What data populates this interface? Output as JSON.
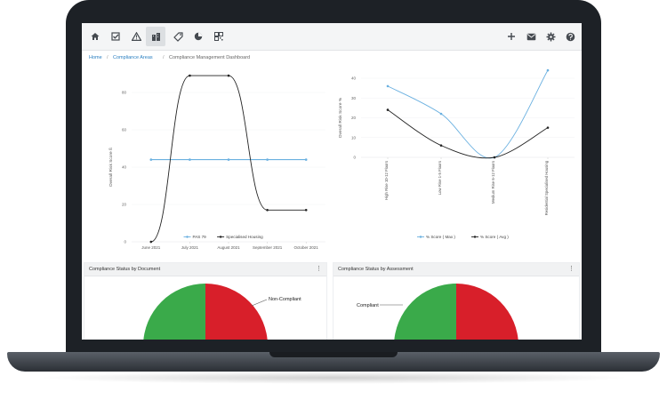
{
  "toolbar": {
    "left_icons": [
      "home-icon",
      "checklist-icon",
      "warning-icon",
      "building-icon",
      "tag-icon",
      "pie-chart-icon",
      "qr-code-icon"
    ],
    "right_icons": [
      "plus-icon",
      "mail-icon",
      "gear-icon",
      "help-icon"
    ]
  },
  "breadcrumb": {
    "home": "Home",
    "compliance_areas": "Compliance Areas",
    "current": "Compliance Management Dashboard"
  },
  "charts": {
    "line_legend": [
      "PAS 79",
      "Specialised Housing"
    ],
    "curve_legend": [
      "% Score ( Max )",
      "% Score ( Avg )"
    ]
  },
  "panels": {
    "doc_title": "Compliance Status by Document",
    "assess_title": "Compliance Status by Assessment",
    "menu": "⋮",
    "doc_label": "Non-Compliant",
    "assess_label": "Compliant"
  },
  "colors": {
    "blue_series": "#6ab0e0",
    "black_series": "#222222",
    "compliant": "#3aaa4a",
    "non_compliant": "#d81f2a",
    "link": "#2a7fc1"
  },
  "chart_data": [
    {
      "type": "line",
      "title": "",
      "ylabel": "Overall Risk Score ß",
      "x": [
        "June 2021",
        "July 2021",
        "August 2021",
        "September 2021",
        "October 2021"
      ],
      "yticks": [
        0,
        20,
        40,
        60,
        80
      ],
      "ylim": [
        0,
        80
      ],
      "series": [
        {
          "name": "PAS 79",
          "values": [
            44,
            44,
            44,
            44,
            44
          ]
        },
        {
          "name": "Specialised Housing",
          "values": [
            0,
            89,
            89,
            17,
            17
          ]
        }
      ],
      "legend": "bottom"
    },
    {
      "type": "line",
      "title": "",
      "ylabel": "Overall Risk Score %",
      "x": [
        "High Rise 10-12 Floors",
        "Low Rise 1-5 Floors",
        "Medium Rise 6-12 Floors",
        "Residential Specialised Housing"
      ],
      "yticks": [
        0,
        10,
        20,
        30,
        40
      ],
      "ylim": [
        0,
        40
      ],
      "series": [
        {
          "name": "% Score ( Max )",
          "values": [
            36,
            22,
            0,
            44
          ]
        },
        {
          "name": "% Score ( Avg )",
          "values": [
            24,
            6,
            0,
            15
          ]
        }
      ],
      "legend": "bottom"
    }
  ]
}
